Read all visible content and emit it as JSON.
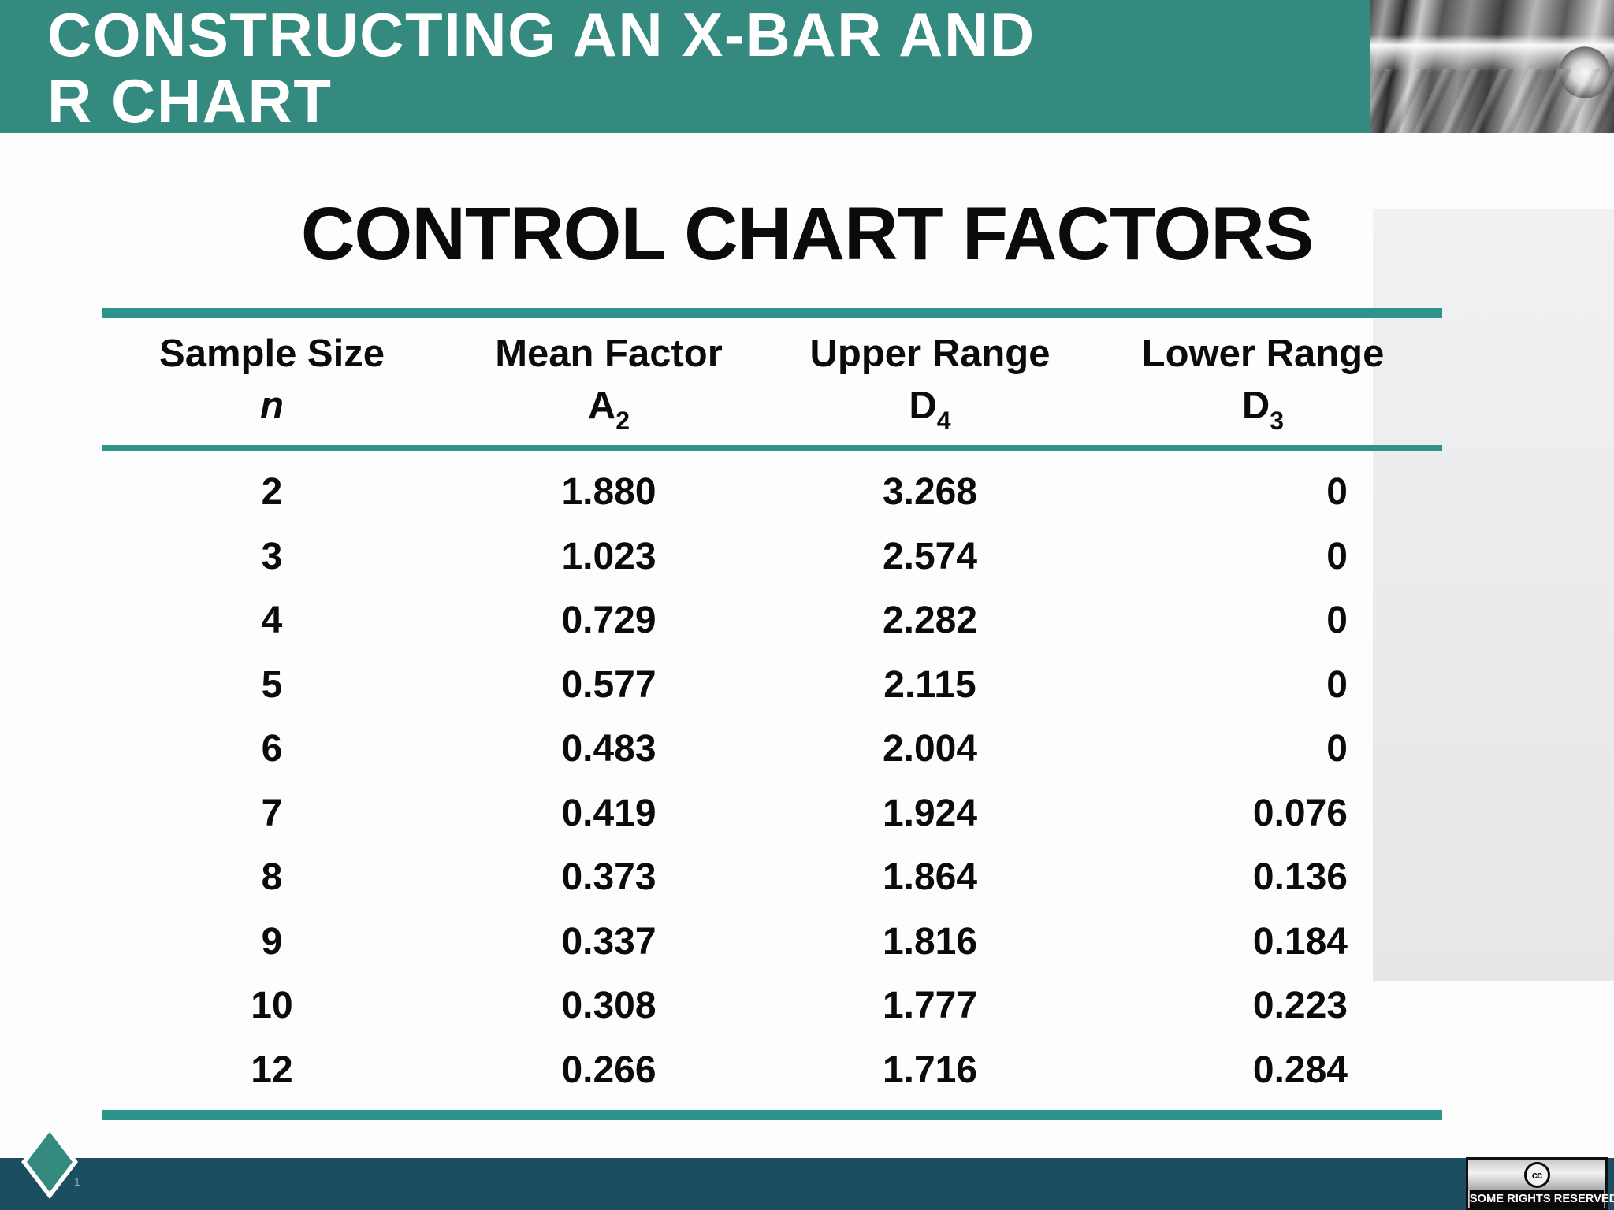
{
  "colors": {
    "teal": "#348a7f",
    "rule": "#2e948b",
    "bar": "#1d4d60"
  },
  "header": {
    "title_line1": "CONSTRUCTING AN X-BAR AND",
    "title_line2": "R CHART"
  },
  "heading": "CONTROL CHART FACTORS",
  "table": {
    "columns": [
      {
        "label": "Sample Size",
        "symbol": "n",
        "sub": ""
      },
      {
        "label": "Mean Factor",
        "symbol": "A",
        "sub": "2"
      },
      {
        "label": "Upper Range",
        "symbol": "D",
        "sub": "4"
      },
      {
        "label": "Lower Range",
        "symbol": "D",
        "sub": "3"
      }
    ],
    "rows": [
      [
        "2",
        "1.880",
        "3.268",
        "0"
      ],
      [
        "3",
        "1.023",
        "2.574",
        "0"
      ],
      [
        "4",
        "0.729",
        "2.282",
        "0"
      ],
      [
        "5",
        "0.577",
        "2.115",
        "0"
      ],
      [
        "6",
        "0.483",
        "2.004",
        "0"
      ],
      [
        "7",
        "0.419",
        "1.924",
        "0.076"
      ],
      [
        "8",
        "0.373",
        "1.864",
        "0.136"
      ],
      [
        "9",
        "0.337",
        "1.816",
        "0.184"
      ],
      [
        "10",
        "0.308",
        "1.777",
        "0.223"
      ],
      [
        "12",
        "0.266",
        "1.716",
        "0.284"
      ]
    ]
  },
  "footer": {
    "slide_number": "1",
    "cc_logo": "cc",
    "cc_label": "SOME RIGHTS RESERVED"
  }
}
